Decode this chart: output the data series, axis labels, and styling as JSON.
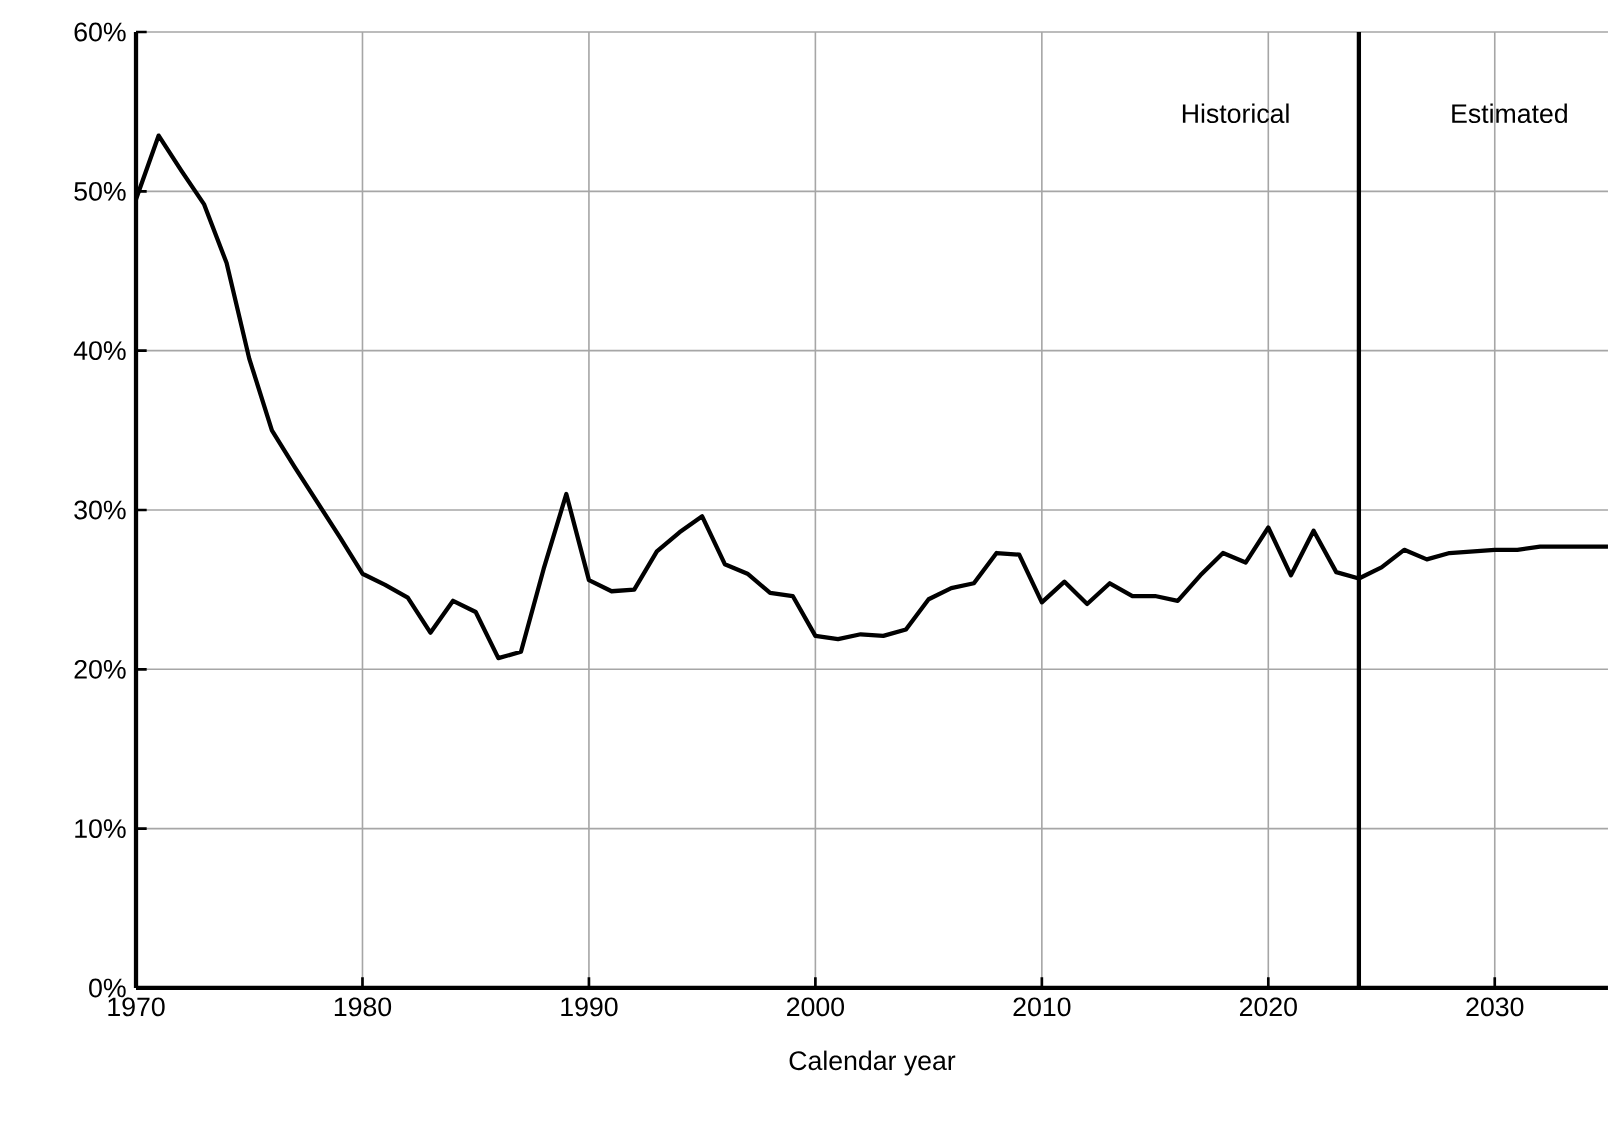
{
  "chart_data": {
    "type": "line",
    "xlabel": "Calendar year",
    "x": [
      1970,
      1971,
      1972,
      1973,
      1974,
      1975,
      1976,
      1977,
      1978,
      1979,
      1980,
      1981,
      1982,
      1983,
      1984,
      1985,
      1986,
      1987,
      1988,
      1989,
      1990,
      1991,
      1992,
      1993,
      1994,
      1995,
      1996,
      1997,
      1998,
      1999,
      2000,
      2001,
      2002,
      2003,
      2004,
      2005,
      2006,
      2007,
      2008,
      2009,
      2010,
      2011,
      2012,
      2013,
      2014,
      2015,
      2016,
      2017,
      2018,
      2019,
      2020,
      2021,
      2022,
      2023,
      2024,
      2025,
      2026,
      2027,
      2028,
      2029,
      2030,
      2031,
      2032,
      2033,
      2034,
      2035
    ],
    "series": [
      {
        "color": "#000000",
        "values": [
          49.5,
          53.5,
          51.3,
          49.2,
          45.5,
          39.5,
          35,
          32.7,
          30.5,
          28.3,
          26,
          25.3,
          24.5,
          22.3,
          24.3,
          23.6,
          20.7,
          21.1,
          26.3,
          31,
          25.6,
          24.9,
          25,
          27.4,
          28.6,
          29.6,
          26.6,
          26,
          24.8,
          24.6,
          22.1,
          21.9,
          22.2,
          22.1,
          22.5,
          24.4,
          25.1,
          25.4,
          27.3,
          27.2,
          24.2,
          25.5,
          24.1,
          25.4,
          24.6,
          24.6,
          24.3,
          25.9,
          27.3,
          26.7,
          28.9,
          25.9,
          28.7,
          26.1,
          25.7,
          26.4,
          27.5,
          26.9,
          27.3,
          27.4,
          27.5,
          27.5,
          27.7,
          27.7,
          27.7,
          27.7
        ]
      }
    ],
    "xlim": [
      1970,
      2035
    ],
    "xticks": [
      1970,
      1980,
      1990,
      2000,
      2010,
      2020,
      2030
    ],
    "ylim": [
      0,
      60
    ],
    "yticks": [
      {
        "value": 0,
        "label": "0%"
      },
      {
        "value": 10,
        "label": "10%"
      },
      {
        "value": 20,
        "label": "20%"
      },
      {
        "value": 30,
        "label": "30%"
      },
      {
        "value": 40,
        "label": "40%"
      },
      {
        "value": 50,
        "label": "50%"
      },
      {
        "value": 60,
        "label": "60%"
      }
    ],
    "grid": true,
    "marker": "none",
    "line_style": "solid",
    "ref_lines": [
      {
        "axis": "x",
        "value": 2024
      }
    ],
    "annotations": [
      "Historical",
      "Estimated"
    ]
  }
}
